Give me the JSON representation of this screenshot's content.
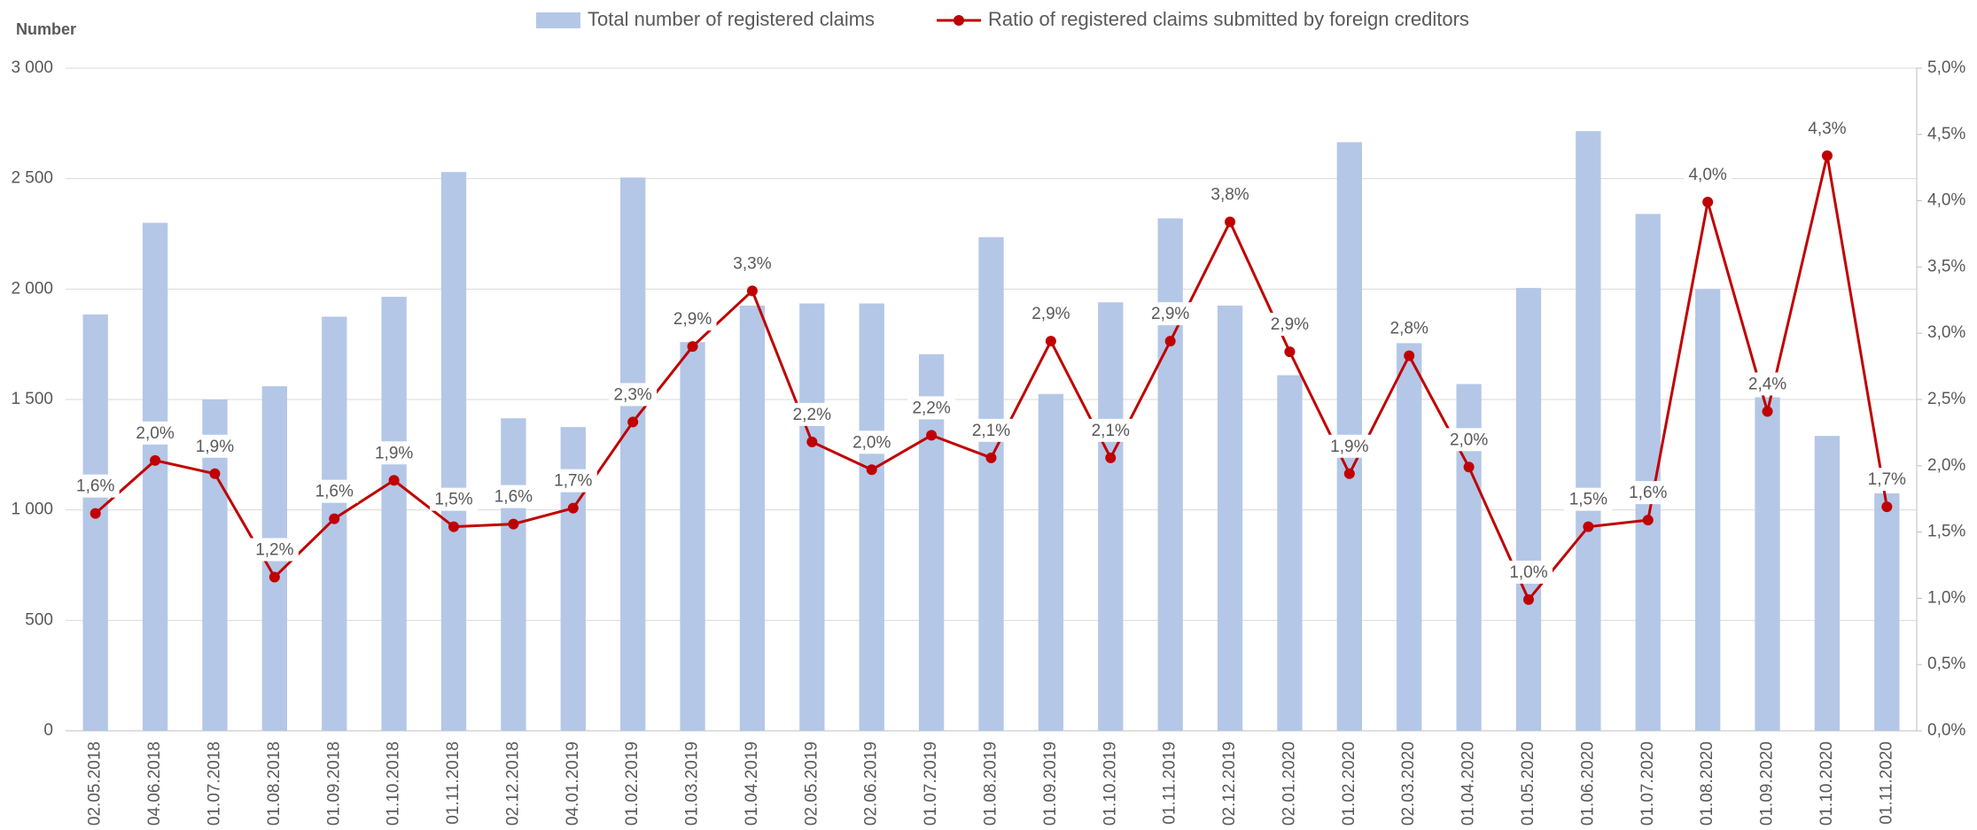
{
  "chart_data": {
    "type": "bar",
    "y_axis_title": "Number",
    "categories": [
      "02.05.2018",
      "04.06.2018",
      "01.07.2018",
      "01.08.2018",
      "01.09.2018",
      "01.10.2018",
      "01.11.2018",
      "02.12.2018",
      "04.01.2019",
      "01.02.2019",
      "01.03.2019",
      "01.04.2019",
      "02.05.2019",
      "02.06.2019",
      "01.07.2019",
      "01.08.2019",
      "01.09.2019",
      "01.10.2019",
      "01.11.2019",
      "02.12.2019",
      "02.01.2020",
      "01.02.2020",
      "02.03.2020",
      "01.04.2020",
      "01.05.2020",
      "01.06.2020",
      "01.07.2020",
      "01.08.2020",
      "01.09.2020",
      "01.10.2020",
      "01.11.2020"
    ],
    "series": [
      {
        "name": "Total number of registered claims",
        "type": "bar",
        "color": "#b4c7e7",
        "values": [
          1885,
          2300,
          1500,
          1560,
          1875,
          1965,
          2530,
          1415,
          1375,
          2505,
          1760,
          1925,
          1935,
          1935,
          1705,
          2235,
          1525,
          1940,
          2320,
          1925,
          1610,
          2665,
          1755,
          1570,
          2005,
          2715,
          2340,
          2000,
          1510,
          1335,
          1075
        ]
      },
      {
        "name": "Ratio of registered claims submitted by foreign creditors",
        "type": "line",
        "axis": "y2",
        "color": "#c00000",
        "values": [
          1.64,
          2.04,
          1.94,
          1.16,
          1.6,
          1.89,
          1.54,
          1.56,
          1.68,
          2.33,
          2.9,
          3.32,
          2.18,
          1.97,
          2.23,
          2.06,
          2.94,
          2.06,
          2.94,
          3.84,
          2.86,
          1.94,
          2.83,
          1.99,
          0.99,
          1.54,
          1.59,
          3.99,
          2.41,
          4.34,
          1.69
        ],
        "value_labels": [
          "1,6%",
          "2,0%",
          "1,9%",
          "1,2%",
          "1,6%",
          "1,9%",
          "1,5%",
          "1,6%",
          "1,7%",
          "2,3%",
          "2,9%",
          "3,3%",
          "2,2%",
          "2,0%",
          "2,2%",
          "2,1%",
          "2,9%",
          "2,1%",
          "2,9%",
          "3,8%",
          "2,9%",
          "1,9%",
          "2,8%",
          "2,0%",
          "1,0%",
          "1,5%",
          "1,6%",
          "4,0%",
          "2,4%",
          "4,3%",
          "1,7%"
        ]
      }
    ],
    "ylim": [
      0,
      3000
    ],
    "yticks": [
      0,
      500,
      {
        "value": 1000,
        "label": "1 000"
      },
      {
        "value": 1500,
        "label": "1 500"
      },
      {
        "value": 2000,
        "label": "2 000"
      },
      {
        "value": 2500,
        "label": "2 500"
      },
      {
        "value": 3000,
        "label": "3 000"
      }
    ],
    "y2lim": [
      0,
      5
    ],
    "y2ticks": [
      {
        "value": 0,
        "label": "0,0%"
      },
      {
        "value": 0.5,
        "label": "0,5%"
      },
      {
        "value": 1,
        "label": "1,0%"
      },
      {
        "value": 1.5,
        "label": "1,5%"
      },
      {
        "value": 2,
        "label": "2,0%"
      },
      {
        "value": 2.5,
        "label": "2,5%"
      },
      {
        "value": 3,
        "label": "3,0%"
      },
      {
        "value": 3.5,
        "label": "3,5%"
      },
      {
        "value": 4,
        "label": "4,0%"
      },
      {
        "value": 4.5,
        "label": "4,5%"
      },
      {
        "value": 5,
        "label": "5,0%"
      }
    ],
    "grid": true,
    "legend": "top"
  }
}
